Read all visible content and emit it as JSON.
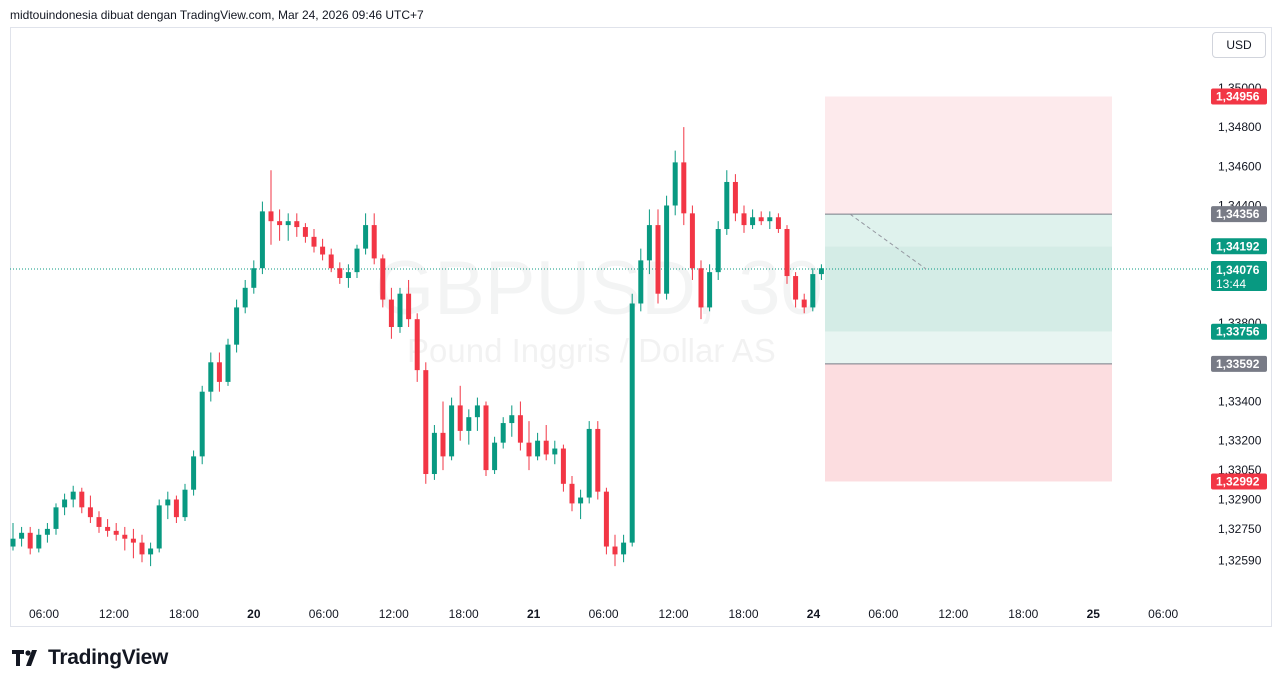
{
  "header": {
    "attribution": "midtouindonesia dibuat dengan TradingView.com, Mar 24, 2026 09:46 UTC+7"
  },
  "currency_button": "USD",
  "watermark": {
    "symbol": "GBPUSD, 30",
    "description": "Pound Inggris / Dollar AS"
  },
  "footer": {
    "brand": "TradingView"
  },
  "colors": {
    "up": "#089981",
    "down": "#f23645",
    "profit_zone": "#d4ece6",
    "loss_zone": "#fcdde0",
    "grey_label": "#787b86"
  },
  "chart_data": {
    "type": "candlestick",
    "symbol": "GBPUSD",
    "interval": "30",
    "ylim": [
      1.3253,
      1.3505
    ],
    "y_ticks": [
      "1,35000",
      "1,34800",
      "1,34600",
      "1,34400",
      "1,33800",
      "1,33400",
      "1,33200",
      "1,33050",
      "1,32900",
      "1,32750",
      "1,32590"
    ],
    "x_ticks": [
      "06:00",
      "12:00",
      "18:00",
      "20",
      "06:00",
      "12:00",
      "18:00",
      "21",
      "06:00",
      "12:00",
      "18:00",
      "24",
      "06:00",
      "12:00",
      "18:00",
      "25",
      "06:00"
    ],
    "x_tick_bold": [
      false,
      false,
      false,
      true,
      false,
      false,
      false,
      true,
      false,
      false,
      false,
      true,
      false,
      false,
      false,
      true,
      false
    ],
    "current_price": {
      "value": "1,34076",
      "countdown": "13:44"
    },
    "price_labels": [
      {
        "value": "1,34956",
        "style": "red"
      },
      {
        "value": "1,34356",
        "style": "grey"
      },
      {
        "value": "1,34192",
        "style": "green"
      },
      {
        "value": "1,33756",
        "style": "green"
      },
      {
        "value": "1,33592",
        "style": "grey"
      },
      {
        "value": "1,32992",
        "style": "red"
      }
    ],
    "position_tool": {
      "upper_target": 1.34956,
      "upper_entry": 1.34356,
      "tp_a": 1.34192,
      "tp_b": 1.33756,
      "lower_entry": 1.33592,
      "lower_target": 1.32992
    },
    "candles": [
      [
        1.3266,
        1.3278,
        1.3264,
        1.327
      ],
      [
        1.327,
        1.3276,
        1.3266,
        1.3273
      ],
      [
        1.3273,
        1.3276,
        1.3262,
        1.3265
      ],
      [
        1.3265,
        1.3275,
        1.3263,
        1.3272
      ],
      [
        1.3272,
        1.3278,
        1.3268,
        1.3275
      ],
      [
        1.3275,
        1.3288,
        1.3272,
        1.3286
      ],
      [
        1.3286,
        1.3293,
        1.3282,
        1.329
      ],
      [
        1.329,
        1.3297,
        1.3286,
        1.3294
      ],
      [
        1.3294,
        1.3296,
        1.3283,
        1.3286
      ],
      [
        1.3286,
        1.3292,
        1.3278,
        1.3281
      ],
      [
        1.3281,
        1.3284,
        1.3273,
        1.3276
      ],
      [
        1.3276,
        1.328,
        1.3271,
        1.3274
      ],
      [
        1.3274,
        1.3278,
        1.3269,
        1.3272
      ],
      [
        1.3272,
        1.3276,
        1.3264,
        1.327
      ],
      [
        1.327,
        1.3275,
        1.326,
        1.3268
      ],
      [
        1.3268,
        1.3272,
        1.3258,
        1.3262
      ],
      [
        1.3262,
        1.3268,
        1.3256,
        1.3265
      ],
      [
        1.3265,
        1.329,
        1.3263,
        1.3287
      ],
      [
        1.3287,
        1.3294,
        1.328,
        1.329
      ],
      [
        1.329,
        1.3292,
        1.3278,
        1.3281
      ],
      [
        1.3281,
        1.3298,
        1.3279,
        1.3295
      ],
      [
        1.3295,
        1.3315,
        1.3292,
        1.3312
      ],
      [
        1.3312,
        1.3348,
        1.3308,
        1.3345
      ],
      [
        1.3345,
        1.3365,
        1.334,
        1.336
      ],
      [
        1.336,
        1.3365,
        1.3345,
        1.335
      ],
      [
        1.335,
        1.3372,
        1.3348,
        1.3369
      ],
      [
        1.3369,
        1.3392,
        1.3365,
        1.3388
      ],
      [
        1.3388,
        1.3402,
        1.3385,
        1.3398
      ],
      [
        1.3398,
        1.3412,
        1.3395,
        1.3408
      ],
      [
        1.3408,
        1.3442,
        1.3405,
        1.3437
      ],
      [
        1.3437,
        1.3458,
        1.342,
        1.3432
      ],
      [
        1.3432,
        1.3438,
        1.3422,
        1.343
      ],
      [
        1.343,
        1.3436,
        1.3422,
        1.3432
      ],
      [
        1.3432,
        1.3436,
        1.3424,
        1.3429
      ],
      [
        1.3429,
        1.3431,
        1.3421,
        1.3424
      ],
      [
        1.3424,
        1.3428,
        1.3416,
        1.3419
      ],
      [
        1.3419,
        1.3423,
        1.3412,
        1.3415
      ],
      [
        1.3415,
        1.3418,
        1.3406,
        1.3408
      ],
      [
        1.3408,
        1.3411,
        1.34,
        1.3403
      ],
      [
        1.3403,
        1.341,
        1.3398,
        1.3406
      ],
      [
        1.3406,
        1.342,
        1.3403,
        1.3418
      ],
      [
        1.3418,
        1.3436,
        1.3415,
        1.343
      ],
      [
        1.343,
        1.3436,
        1.341,
        1.3413
      ],
      [
        1.3413,
        1.3415,
        1.3388,
        1.3392
      ],
      [
        1.3392,
        1.3398,
        1.3372,
        1.3378
      ],
      [
        1.3378,
        1.3398,
        1.3375,
        1.3395
      ],
      [
        1.3395,
        1.3402,
        1.3378,
        1.3382
      ],
      [
        1.3382,
        1.3385,
        1.335,
        1.3356
      ],
      [
        1.3356,
        1.336,
        1.3298,
        1.3303
      ],
      [
        1.3303,
        1.3328,
        1.33,
        1.3324
      ],
      [
        1.3324,
        1.334,
        1.3305,
        1.3312
      ],
      [
        1.3312,
        1.3342,
        1.331,
        1.3338
      ],
      [
        1.3338,
        1.3348,
        1.332,
        1.3325
      ],
      [
        1.3325,
        1.3336,
        1.3318,
        1.3332
      ],
      [
        1.3332,
        1.3342,
        1.3325,
        1.3338
      ],
      [
        1.3338,
        1.334,
        1.3302,
        1.3305
      ],
      [
        1.3305,
        1.3322,
        1.3303,
        1.3319
      ],
      [
        1.3319,
        1.3332,
        1.3316,
        1.3329
      ],
      [
        1.3329,
        1.3338,
        1.3322,
        1.3333
      ],
      [
        1.3333,
        1.334,
        1.3315,
        1.3319
      ],
      [
        1.3319,
        1.333,
        1.3305,
        1.3312
      ],
      [
        1.3312,
        1.3324,
        1.331,
        1.332
      ],
      [
        1.332,
        1.3328,
        1.331,
        1.3313
      ],
      [
        1.3313,
        1.332,
        1.3308,
        1.3316
      ],
      [
        1.3316,
        1.3318,
        1.3294,
        1.3298
      ],
      [
        1.3298,
        1.3302,
        1.3284,
        1.3288
      ],
      [
        1.3288,
        1.3295,
        1.328,
        1.3291
      ],
      [
        1.3291,
        1.333,
        1.3288,
        1.3326
      ],
      [
        1.3326,
        1.333,
        1.329,
        1.3294
      ],
      [
        1.3294,
        1.3296,
        1.3262,
        1.3266
      ],
      [
        1.3266,
        1.3272,
        1.3256,
        1.3262
      ],
      [
        1.3262,
        1.3272,
        1.3258,
        1.3268
      ],
      [
        1.3268,
        1.3395,
        1.3266,
        1.339
      ],
      [
        1.339,
        1.3418,
        1.3386,
        1.3412
      ],
      [
        1.3412,
        1.3438,
        1.3405,
        1.343
      ],
      [
        1.343,
        1.3438,
        1.339,
        1.3395
      ],
      [
        1.3395,
        1.3445,
        1.3392,
        1.344
      ],
      [
        1.344,
        1.3468,
        1.3435,
        1.3462
      ],
      [
        1.3462,
        1.348,
        1.343,
        1.3436
      ],
      [
        1.3436,
        1.344,
        1.3402,
        1.3408
      ],
      [
        1.3408,
        1.3412,
        1.3382,
        1.3388
      ],
      [
        1.3388,
        1.341,
        1.3386,
        1.3406
      ],
      [
        1.3406,
        1.3432,
        1.3402,
        1.3428
      ],
      [
        1.3428,
        1.3458,
        1.3425,
        1.3452
      ],
      [
        1.3452,
        1.3456,
        1.3432,
        1.3436
      ],
      [
        1.3436,
        1.344,
        1.3426,
        1.343
      ],
      [
        1.343,
        1.3438,
        1.3428,
        1.3434
      ],
      [
        1.3434,
        1.3437,
        1.343,
        1.3432
      ],
      [
        1.3432,
        1.3437,
        1.3428,
        1.3434
      ],
      [
        1.3434,
        1.3436,
        1.3426,
        1.3428
      ],
      [
        1.3428,
        1.343,
        1.34,
        1.3404
      ],
      [
        1.3404,
        1.3406,
        1.3388,
        1.3392
      ],
      [
        1.3392,
        1.3395,
        1.3385,
        1.3388
      ],
      [
        1.3388,
        1.3408,
        1.3386,
        1.3405
      ],
      [
        1.3405,
        1.341,
        1.3402,
        1.3408
      ]
    ]
  }
}
